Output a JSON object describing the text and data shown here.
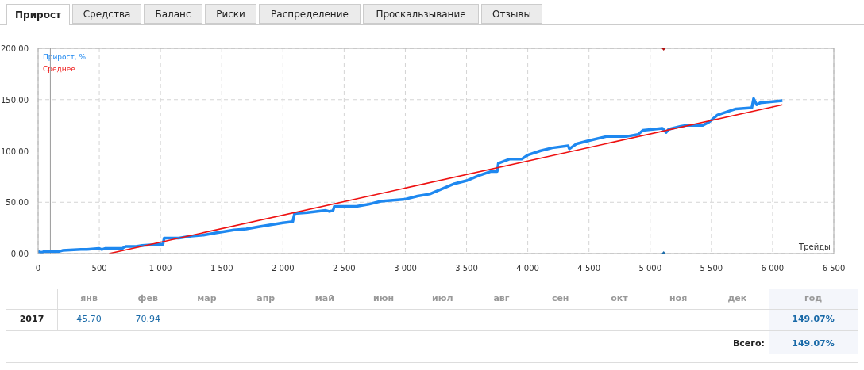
{
  "chart_data": {
    "type": "line",
    "xlabel": "Трейды",
    "xlim": [
      0,
      6500
    ],
    "xticks": [
      0,
      500,
      {
        "value": 1000,
        "label": "1 000"
      },
      {
        "value": 1500,
        "label": "1 500"
      },
      {
        "value": 2000,
        "label": "2 000"
      },
      {
        "value": 2500,
        "label": "2 500"
      },
      {
        "value": 3000,
        "label": "3 000"
      },
      {
        "value": 3500,
        "label": "3 500"
      },
      {
        "value": 4000,
        "label": "4 000"
      },
      {
        "value": 4500,
        "label": "4 500"
      },
      {
        "value": 5000,
        "label": "5 000"
      },
      {
        "value": 5500,
        "label": "5 500"
      },
      {
        "value": 6000,
        "label": "6 000"
      },
      {
        "value": 6500,
        "label": "6 500"
      }
    ],
    "ylim": [
      0,
      200
    ],
    "yticks": [
      {
        "value": 0,
        "label": "0.00"
      },
      {
        "value": 50,
        "label": "50.00"
      },
      {
        "value": 100,
        "label": "100.00"
      },
      {
        "value": 150,
        "label": "150.00"
      },
      {
        "value": 200,
        "label": "200.00"
      }
    ],
    "grid": true,
    "legend": "top left",
    "series": [
      {
        "name": "Прирост, %",
        "color": "#1e88f0",
        "x": [
          0,
          30,
          50,
          170,
          200,
          350,
          400,
          500,
          520,
          550,
          690,
          700,
          720,
          800,
          850,
          1000,
          1020,
          1030,
          1150,
          1200,
          1250,
          1350,
          1450,
          1500,
          1600,
          1700,
          1800,
          1900,
          2000,
          2080,
          2095,
          2200,
          2350,
          2380,
          2410,
          2420,
          2600,
          2700,
          2800,
          3000,
          3100,
          3200,
          3300,
          3400,
          3500,
          3600,
          3700,
          3750,
          3760,
          3850,
          3950,
          4000,
          4100,
          4200,
          4330,
          4340,
          4400,
          4500,
          4640,
          4800,
          4900,
          4940,
          5100,
          5130,
          5150,
          5250,
          5300,
          5430,
          5480,
          5550,
          5700,
          5830,
          5845,
          5870,
          5900,
          6000,
          6080
        ],
        "values": [
          2,
          1,
          2,
          2,
          3,
          4,
          4,
          5,
          4,
          5,
          5,
          6,
          7,
          7,
          8,
          9,
          9,
          15,
          15,
          16,
          17,
          18,
          20,
          21,
          23,
          24,
          26,
          28,
          30,
          31,
          39,
          40,
          42,
          41,
          42,
          46,
          46,
          48,
          51,
          53,
          56,
          58,
          63,
          68,
          71,
          76,
          80,
          80,
          88,
          92,
          92,
          96,
          100,
          103,
          105,
          102,
          107,
          110,
          114,
          114,
          116,
          120,
          122,
          118,
          121,
          124,
          125,
          125,
          128,
          135,
          141,
          142,
          151,
          145,
          147,
          148,
          149
        ]
      },
      {
        "name": "Среднее",
        "color": "#ee1111",
        "x": [
          580,
          6080
        ],
        "values": [
          0,
          145
        ]
      },
      {
        "type": "scatter",
        "marker": "triangle",
        "colors": [
          "#b01010",
          "#1a6aa8"
        ],
        "x": [
          5110,
          5110
        ],
        "values": [
          200,
          0
        ]
      }
    ],
    "ref_lines": [
      {
        "axis": "x",
        "value": 100,
        "color": "#999999"
      }
    ],
    "annotations": [
      "Прирост",
      "Средства",
      "Баланс",
      "Риски",
      "Распределение",
      "Проскальзывание",
      "Отзывы",
      "янв",
      "фев",
      "мар",
      "апр",
      "май",
      "июн",
      "июл",
      "авг",
      "сен",
      "окт",
      "ноя",
      "дек",
      "год",
      "2017",
      "45.70",
      "70.94",
      "149.07%",
      "Всего:",
      "149.07%"
    ]
  }
}
